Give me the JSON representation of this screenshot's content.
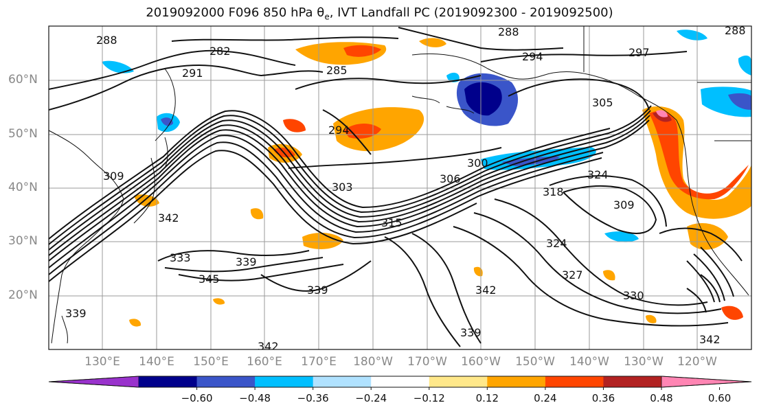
{
  "title": "2019092000 F096 850 hPa θ",
  "title_sub": "e",
  "title_rest": ", IVT Landfall PC (2019092300 - 2019092500)",
  "lat_labels": [
    "60°N",
    "50°N",
    "40°N",
    "30°N",
    "20°N"
  ],
  "lon_labels": [
    "130°E",
    "140°E",
    "150°E",
    "160°E",
    "170°E",
    "180°W",
    "170°W",
    "160°W",
    "150°W",
    "140°W",
    "130°W",
    "120°W"
  ],
  "contour_labels": [
    "288",
    "282",
    "291",
    "285",
    "294",
    "288",
    "297",
    "294",
    "305",
    "309",
    "300",
    "306",
    "303",
    "318",
    "324",
    "315",
    "342",
    "309",
    "333",
    "339",
    "345",
    "339",
    "324",
    "327",
    "330",
    "342",
    "339",
    "339",
    "342",
    "342",
    "288"
  ],
  "colorbar": {
    "ticks": [
      "−0.60",
      "−0.48",
      "−0.36",
      "−0.24",
      "−0.12",
      "0.12",
      "0.24",
      "0.36",
      "0.48",
      "0.60"
    ],
    "colors": [
      "#9932cc",
      "#00008b",
      "#3a55c9",
      "#00bfff",
      "#b0e2ff",
      "#ffffff",
      "#ffe88a",
      "#ffa500",
      "#ff4500",
      "#b22222",
      "#ff85b3"
    ]
  },
  "shade_colors": {
    "neg_strong": "#00008b",
    "neg_mid": "#3a55c9",
    "neg_light": "#00bfff",
    "neg_pale": "#b0e2ff",
    "pos_pale": "#ffe88a",
    "pos_light": "#ffa500",
    "pos_mid": "#ff4500",
    "pos_strong": "#b22222",
    "pos_max": "#ff85b3"
  }
}
